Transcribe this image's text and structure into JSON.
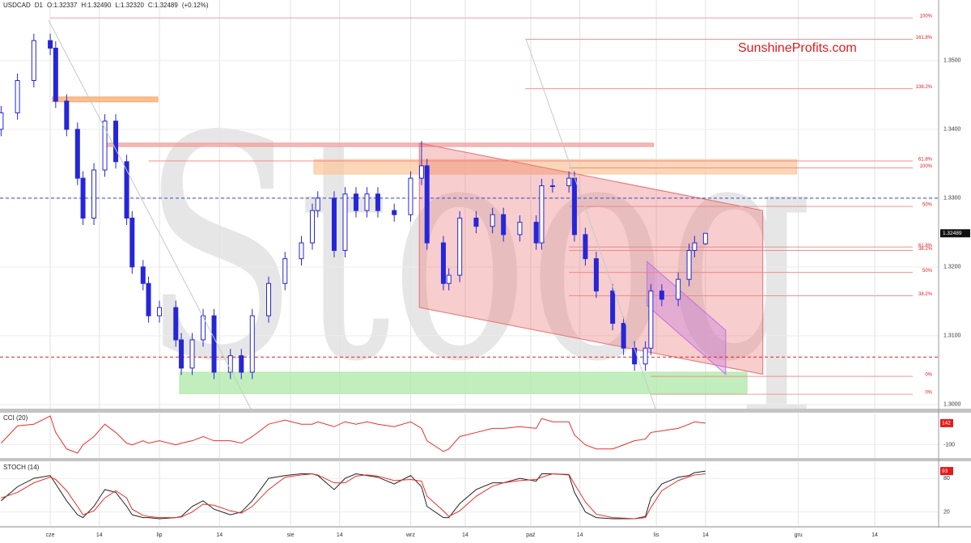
{
  "header": {
    "symbol": "USDCAD",
    "timeframe": "D1",
    "open": "O:1.32337",
    "high": "H:1.32490",
    "low": "L:1.32320",
    "close": "C:1.32489",
    "change": "(+0.12%)"
  },
  "watermark": "Stooq",
  "brand": "SunshineProfits.com",
  "chart_data": [
    {
      "type": "candlestick",
      "color": "#2626d9",
      "x": [
        -9,
        -6,
        -3,
        0,
        1,
        3,
        5,
        6,
        8,
        10,
        12,
        14,
        15,
        17,
        18,
        20,
        23,
        24,
        26,
        28,
        30,
        33,
        35,
        37,
        40,
        43,
        46,
        48,
        49,
        52,
        54,
        56,
        58,
        60,
        63,
        66,
        68,
        69,
        72,
        73,
        75,
        78,
        81,
        83,
        86,
        89,
        90,
        92,
        95,
        96,
        98,
        100,
        103,
        105,
        107,
        109,
        110,
        112,
        115,
        117,
        118,
        120
      ],
      "open": [
        1.34,
        1.3424,
        1.3471,
        1.3529,
        1.3518,
        1.3441,
        1.34,
        1.3329,
        1.3271,
        1.3341,
        1.3412,
        1.3353,
        1.3271,
        1.32,
        1.3176,
        1.3129,
        1.3141,
        1.3094,
        1.3053,
        1.3094,
        1.3129,
        1.3047,
        1.3071,
        1.3047,
        1.3129,
        1.3176,
        1.3212,
        1.3235,
        1.3282,
        1.33,
        1.3224,
        1.3306,
        1.3282,
        1.3306,
        1.3282,
        1.3276,
        1.3329,
        1.3347,
        1.3235,
        1.3176,
        1.3188,
        1.3271,
        1.3259,
        1.3276,
        1.3247,
        1.3265,
        1.3235,
        1.3318,
        1.3318,
        1.3329,
        1.3247,
        1.3212,
        1.3165,
        1.3118,
        1.3082,
        1.3059,
        1.3082,
        1.3165,
        1.3153,
        1.3182,
        1.3224,
        1.32337
      ],
      "high": [
        1.3434,
        1.3481,
        1.3539,
        1.3539,
        1.3528,
        1.3451,
        1.341,
        1.3339,
        1.3351,
        1.3422,
        1.3422,
        1.3363,
        1.3281,
        1.321,
        1.3186,
        1.3151,
        1.3151,
        1.3104,
        1.3104,
        1.3139,
        1.3139,
        1.3081,
        1.3081,
        1.3139,
        1.3186,
        1.3222,
        1.3245,
        1.3292,
        1.331,
        1.331,
        1.3316,
        1.3316,
        1.3316,
        1.3316,
        1.3292,
        1.3339,
        1.3383,
        1.3357,
        1.3245,
        1.3198,
        1.3281,
        1.3281,
        1.3286,
        1.3286,
        1.3275,
        1.3275,
        1.3328,
        1.3328,
        1.3339,
        1.3339,
        1.3257,
        1.3222,
        1.3175,
        1.3128,
        1.3092,
        1.3092,
        1.3175,
        1.3175,
        1.3192,
        1.3234,
        1.3245,
        1.3249
      ],
      "low": [
        1.339,
        1.3414,
        1.3461,
        1.3508,
        1.3431,
        1.339,
        1.3319,
        1.3261,
        1.3261,
        1.3331,
        1.3343,
        1.3261,
        1.319,
        1.3166,
        1.3119,
        1.3119,
        1.3084,
        1.3043,
        1.3043,
        1.3084,
        1.3037,
        1.3037,
        1.3037,
        1.3037,
        1.3119,
        1.3166,
        1.3202,
        1.3225,
        1.3272,
        1.3214,
        1.3214,
        1.3272,
        1.3272,
        1.3272,
        1.3266,
        1.3266,
        1.3319,
        1.3225,
        1.3166,
        1.3166,
        1.3178,
        1.3249,
        1.3249,
        1.3237,
        1.3237,
        1.3225,
        1.3225,
        1.3308,
        1.3308,
        1.3237,
        1.3202,
        1.3155,
        1.3108,
        1.3072,
        1.3049,
        1.3049,
        1.3072,
        1.3143,
        1.3143,
        1.3172,
        1.3214,
        1.3232
      ],
      "close": [
        1.3424,
        1.3471,
        1.3529,
        1.3518,
        1.3441,
        1.34,
        1.3329,
        1.3271,
        1.3341,
        1.3412,
        1.3353,
        1.3271,
        1.32,
        1.3176,
        1.3129,
        1.3141,
        1.3094,
        1.3053,
        1.3094,
        1.3129,
        1.3047,
        1.3071,
        1.3047,
        1.3129,
        1.3176,
        1.3212,
        1.3235,
        1.3282,
        1.33,
        1.3224,
        1.3306,
        1.3282,
        1.3306,
        1.3282,
        1.3276,
        1.3329,
        1.3347,
        1.3235,
        1.3176,
        1.3188,
        1.3271,
        1.3259,
        1.3276,
        1.3247,
        1.3265,
        1.3235,
        1.3318,
        1.3318,
        1.3329,
        1.3247,
        1.3212,
        1.3165,
        1.3118,
        1.3082,
        1.3059,
        1.3082,
        1.3165,
        1.3153,
        1.3182,
        1.3224,
        1.3235,
        1.32489
      ],
      "xlim": [
        -9.2,
        162.7
      ],
      "xticks": [
        {
          "value": 0,
          "label": "cze"
        },
        {
          "value": 9,
          "label": "14"
        },
        {
          "value": 20,
          "label": "lip"
        },
        {
          "value": 31,
          "label": "14"
        },
        {
          "value": 44,
          "label": "sie"
        },
        {
          "value": 53,
          "label": "14"
        },
        {
          "value": 66,
          "label": "wrz"
        },
        {
          "value": 76,
          "label": "14"
        },
        {
          "value": 88,
          "label": "paź"
        },
        {
          "value": 97,
          "label": "14"
        },
        {
          "value": 111,
          "label": "lis"
        },
        {
          "value": 120,
          "label": "14"
        },
        {
          "value": 137,
          "label": "gru"
        },
        {
          "value": 151,
          "label": "14"
        }
      ],
      "ylim": [
        1.2994,
        1.3588
      ],
      "yticks": [
        {
          "value": 1.35,
          "label": "1.3500"
        },
        {
          "value": 1.34,
          "label": "1.3400"
        },
        {
          "value": 1.33,
          "label": "1.3300"
        },
        {
          "value": 1.32,
          "label": "1.3200"
        },
        {
          "value": 1.31,
          "label": "1.3100"
        },
        {
          "value": 1.3,
          "label": "1.3000"
        }
      ],
      "zones": [
        {
          "x": [
            0.4,
            19.7
          ],
          "y": [
            1.344,
            1.3447
          ],
          "color": "#f6a96c"
        },
        {
          "x": [
            48.3,
            136.7
          ],
          "y": [
            1.3335,
            1.3356
          ],
          "color": "#f9c9a0"
        },
        {
          "x": [
            9.8,
            110.5
          ],
          "y": [
            1.3375,
            1.338
          ],
          "color": "#f2a0a0"
        },
        {
          "x": [
            23.7,
            127.6
          ],
          "y": [
            1.3016,
            1.3047
          ],
          "color": "#aee8a8"
        }
      ],
      "channels": [
        {
          "points": [
            [
              67.6,
              1.338
            ],
            [
              130.5,
              1.3282
            ],
            [
              130.5,
              1.3044
            ],
            [
              67.6,
              1.3141
            ]
          ],
          "color": "#e87070"
        },
        {
          "points": [
            [
              109.3,
              1.3208
            ],
            [
              123.7,
              1.3108
            ],
            [
              123.7,
              1.3044
            ],
            [
              109.3,
              1.3144
            ]
          ],
          "color": "#c070e0"
        }
      ],
      "hlines": [
        {
          "price": 1.33,
          "color": "#3344dd"
        },
        {
          "price": 1.3069,
          "color": "#dd2222"
        }
      ],
      "levels": [
        {
          "label": "100%",
          "price": 1.3562,
          "start": 0
        },
        {
          "label": "161.8%",
          "price": 1.3531,
          "start": 87
        },
        {
          "label": "138.2%",
          "price": 1.3459,
          "start": 87
        },
        {
          "label": "61.8%",
          "price": 1.3354,
          "start": 18
        },
        {
          "label": "100%",
          "price": 1.3344,
          "start": 95
        },
        {
          "label": "50%",
          "price": 1.3288,
          "start": 95
        },
        {
          "label": "61.8%",
          "price": 1.3229,
          "start": 95
        },
        {
          "label": "38.2%",
          "price": 1.3224,
          "start": 95
        },
        {
          "label": "50%",
          "price": 1.3192,
          "start": 95
        },
        {
          "label": "38.2%",
          "price": 1.3158,
          "start": 95
        },
        {
          "label": "0%",
          "price": 1.3041,
          "start": 110
        },
        {
          "label": "0%",
          "price": 1.3015,
          "start": 110
        }
      ]
    },
    {
      "type": "line",
      "title": "CCI (20)",
      "ylim": [
        -250,
        250
      ],
      "yticks": [
        -100
      ],
      "series": [
        {
          "color": "#e8302a",
          "values": [
            -83,
            111,
            130,
            222,
            37,
            -148,
            -194,
            -102,
            -9,
            130,
            37,
            -83,
            -102,
            -56,
            -83,
            -56,
            -102,
            -83,
            -56,
            -9,
            -56,
            -56,
            -83,
            -9,
            130,
            176,
            130,
            130,
            157,
            102,
            157,
            130,
            157,
            130,
            102,
            157,
            83,
            -56,
            -176,
            -148,
            -9,
            37,
            83,
            83,
            102,
            83,
            194,
            157,
            157,
            9,
            -102,
            -148,
            -148,
            -102,
            -56,
            -37,
            37,
            56,
            83,
            130,
            157,
            142
          ]
        }
      ]
    },
    {
      "type": "line",
      "title": "STOCH (14)",
      "ylim": [
        -5,
        109
      ],
      "yticks": [
        20,
        80
      ],
      "series": [
        {
          "color": "#222222",
          "values": [
            40,
            65,
            80,
            85,
            70,
            40,
            15,
            10,
            30,
            60,
            55,
            30,
            15,
            10,
            10,
            8,
            10,
            12,
            30,
            40,
            25,
            15,
            20,
            40,
            80,
            85,
            88,
            88,
            85,
            60,
            80,
            88,
            85,
            82,
            70,
            85,
            65,
            30,
            10,
            10,
            35,
            60,
            72,
            72,
            80,
            75,
            88,
            88,
            86,
            55,
            20,
            10,
            8,
            8,
            8,
            12,
            45,
            70,
            82,
            85,
            90,
            93
          ]
        },
        {
          "color": "#e8302a",
          "values": [
            45,
            55,
            72,
            82,
            78,
            58,
            30,
            15,
            22,
            45,
            58,
            45,
            25,
            14,
            12,
            10,
            10,
            11,
            20,
            34,
            32,
            22,
            18,
            30,
            60,
            82,
            86,
            88,
            86,
            72,
            72,
            84,
            86,
            84,
            76,
            78,
            75,
            48,
            22,
            12,
            22,
            48,
            66,
            72,
            76,
            78,
            82,
            88,
            87,
            70,
            38,
            16,
            10,
            9,
            8,
            10,
            28,
            58,
            76,
            83,
            86,
            88
          ]
        }
      ]
    }
  ]
}
